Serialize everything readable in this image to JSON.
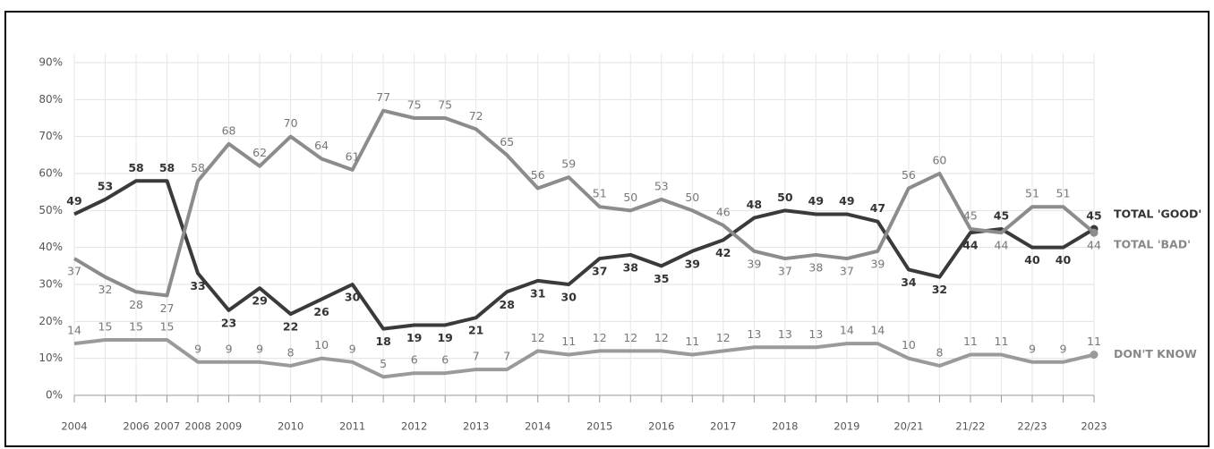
{
  "chart_data": {
    "type": "line",
    "categories": [
      "2004",
      null,
      "2006",
      "2007",
      "2008",
      "2009",
      null,
      "2010",
      null,
      "2011",
      null,
      "2012",
      null,
      "2013",
      null,
      "2014",
      null,
      "2015",
      null,
      "2016",
      null,
      "2017",
      null,
      "2018",
      null,
      "2019",
      null,
      "20/21",
      null,
      "21/22",
      null,
      "22/23",
      null,
      "2023"
    ],
    "series": [
      {
        "name": "TOTAL 'GOOD'",
        "color": "#3a3a3a",
        "values": [
          49,
          53,
          58,
          58,
          33,
          23,
          29,
          22,
          26,
          30,
          18,
          19,
          19,
          21,
          28,
          31,
          30,
          37,
          38,
          35,
          39,
          42,
          48,
          50,
          49,
          49,
          47,
          34,
          32,
          44,
          45,
          40,
          40,
          45
        ]
      },
      {
        "name": "TOTAL 'BAD'",
        "color": "#8c8c8c",
        "values": [
          37,
          32,
          28,
          27,
          58,
          68,
          62,
          70,
          64,
          61,
          77,
          75,
          75,
          72,
          65,
          56,
          59,
          51,
          50,
          53,
          50,
          46,
          39,
          37,
          38,
          37,
          39,
          56,
          60,
          45,
          44,
          51,
          51,
          44
        ]
      },
      {
        "name": "DON'T KNOW",
        "color": "#9a9a9a",
        "values": [
          14,
          15,
          15,
          15,
          9,
          9,
          9,
          8,
          10,
          9,
          5,
          6,
          6,
          7,
          7,
          12,
          11,
          12,
          12,
          12,
          11,
          12,
          13,
          13,
          13,
          14,
          14,
          10,
          8,
          11,
          11,
          9,
          9,
          11
        ]
      }
    ],
    "ylim": [
      0,
      90
    ],
    "yticks": [
      {
        "value": 0,
        "label": "0%"
      },
      {
        "value": 10,
        "label": "10%"
      },
      {
        "value": 20,
        "label": "20%"
      },
      {
        "value": 30,
        "label": "30%"
      },
      {
        "value": 40,
        "label": "40%"
      },
      {
        "value": 50,
        "label": "50%"
      },
      {
        "value": 60,
        "label": "60%"
      },
      {
        "value": 70,
        "label": "70%"
      },
      {
        "value": 80,
        "label": "80%"
      },
      {
        "value": 90,
        "label": "90%"
      }
    ],
    "grid": true
  }
}
